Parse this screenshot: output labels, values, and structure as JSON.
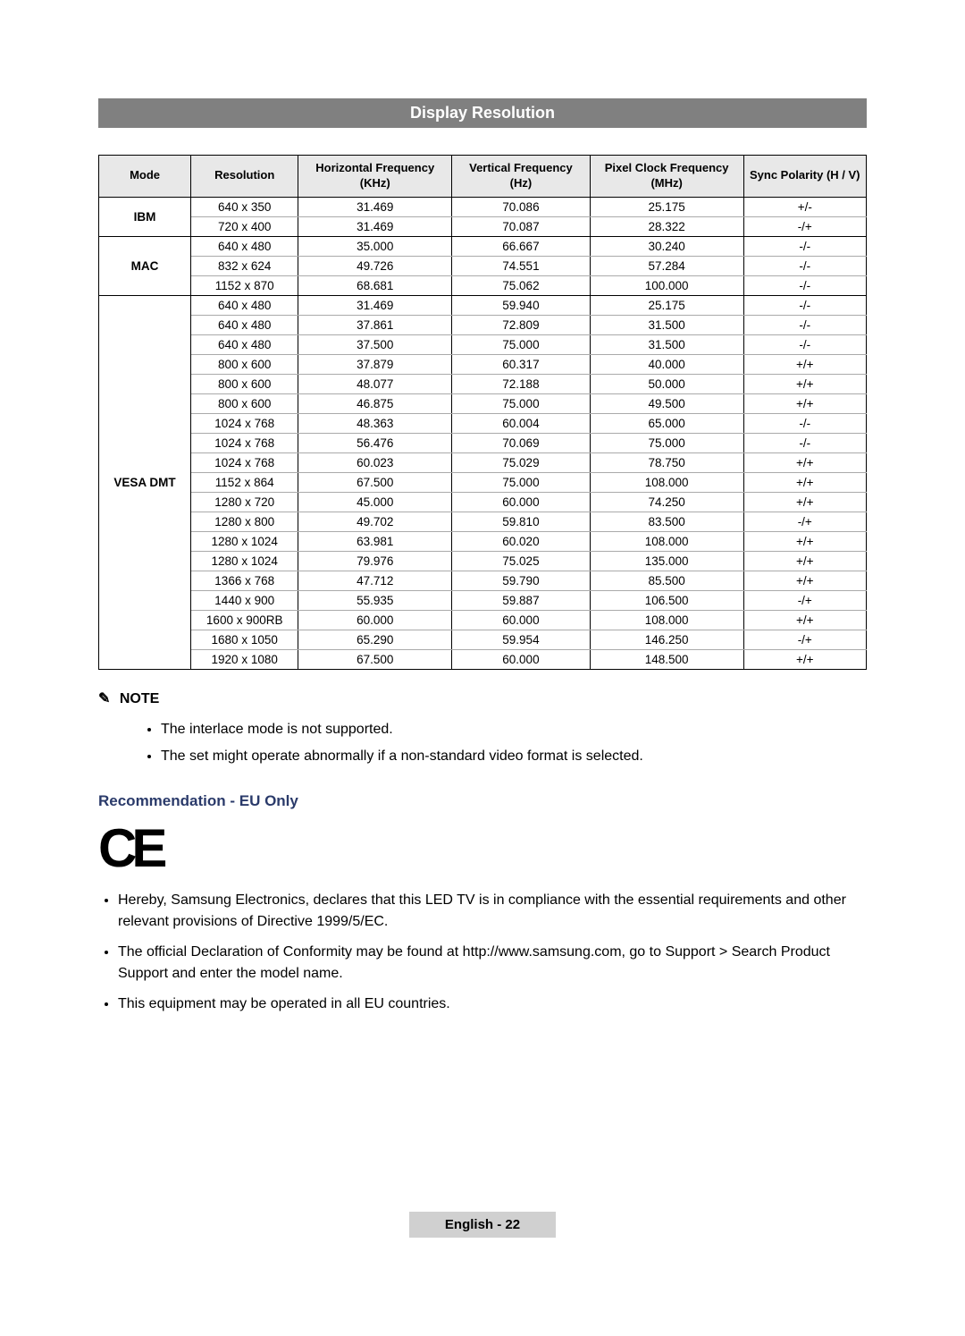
{
  "title": "Display Resolution",
  "columns": [
    "Mode",
    "Resolution",
    "Horizontal Frequency\n(KHz)",
    "Vertical Frequency\n(Hz)",
    "Pixel Clock Frequency\n(MHz)",
    "Sync Polarity (H / V)"
  ],
  "col_widths": [
    "12%",
    "14%",
    "20%",
    "18%",
    "20%",
    "16%"
  ],
  "header_bg": "#e8e8e8",
  "groups": [
    {
      "mode": "IBM",
      "rows": [
        [
          "640 x 350",
          "31.469",
          "70.086",
          "25.175",
          "+/-"
        ],
        [
          "720 x 400",
          "31.469",
          "70.087",
          "28.322",
          "-/+"
        ]
      ]
    },
    {
      "mode": "MAC",
      "rows": [
        [
          "640 x 480",
          "35.000",
          "66.667",
          "30.240",
          "-/-"
        ],
        [
          "832 x 624",
          "49.726",
          "74.551",
          "57.284",
          "-/-"
        ],
        [
          "1152 x 870",
          "68.681",
          "75.062",
          "100.000",
          "-/-"
        ]
      ]
    },
    {
      "mode": "VESA DMT",
      "rows": [
        [
          "640 x 480",
          "31.469",
          "59.940",
          "25.175",
          "-/-"
        ],
        [
          "640 x 480",
          "37.861",
          "72.809",
          "31.500",
          "-/-"
        ],
        [
          "640 x 480",
          "37.500",
          "75.000",
          "31.500",
          "-/-"
        ],
        [
          "800 x 600",
          "37.879",
          "60.317",
          "40.000",
          "+/+"
        ],
        [
          "800 x 600",
          "48.077",
          "72.188",
          "50.000",
          "+/+"
        ],
        [
          "800 x 600",
          "46.875",
          "75.000",
          "49.500",
          "+/+"
        ],
        [
          "1024 x 768",
          "48.363",
          "60.004",
          "65.000",
          "-/-"
        ],
        [
          "1024 x 768",
          "56.476",
          "70.069",
          "75.000",
          "-/-"
        ],
        [
          "1024 x 768",
          "60.023",
          "75.029",
          "78.750",
          "+/+"
        ],
        [
          "1152 x 864",
          "67.500",
          "75.000",
          "108.000",
          "+/+"
        ],
        [
          "1280 x 720",
          "45.000",
          "60.000",
          "74.250",
          "+/+"
        ],
        [
          "1280 x 800",
          "49.702",
          "59.810",
          "83.500",
          "-/+"
        ],
        [
          "1280 x 1024",
          "63.981",
          "60.020",
          "108.000",
          "+/+"
        ],
        [
          "1280 x 1024",
          "79.976",
          "75.025",
          "135.000",
          "+/+"
        ],
        [
          "1366 x 768",
          "47.712",
          "59.790",
          "85.500",
          "+/+"
        ],
        [
          "1440 x 900",
          "55.935",
          "59.887",
          "106.500",
          "-/+"
        ],
        [
          "1600 x 900RB",
          "60.000",
          "60.000",
          "108.000",
          "+/+"
        ],
        [
          "1680 x 1050",
          "65.290",
          "59.954",
          "146.250",
          "-/+"
        ],
        [
          "1920 x 1080",
          "67.500",
          "60.000",
          "148.500",
          "+/+"
        ]
      ]
    }
  ],
  "note_label": "NOTE",
  "note_icon": "✎",
  "notes": [
    "The interlace mode is not supported.",
    "The set might operate abnormally if a non-standard video format is selected."
  ],
  "rec_heading": "Recommendation - EU Only",
  "rec_heading_color": "#2a3a6a",
  "ce_text": "CE",
  "recommendations": [
    "Hereby, Samsung Electronics, declares that this LED TV is in compliance with the essential requirements and other relevant provisions of Directive 1999/5/EC.",
    "The official Declaration of Conformity may be found at http://www.samsung.com, go to Support > Search Product Support and enter the model name.",
    "This equipment may be operated in all EU countries."
  ],
  "footer": "English - 22",
  "footer_bg": "#d0d0d0"
}
